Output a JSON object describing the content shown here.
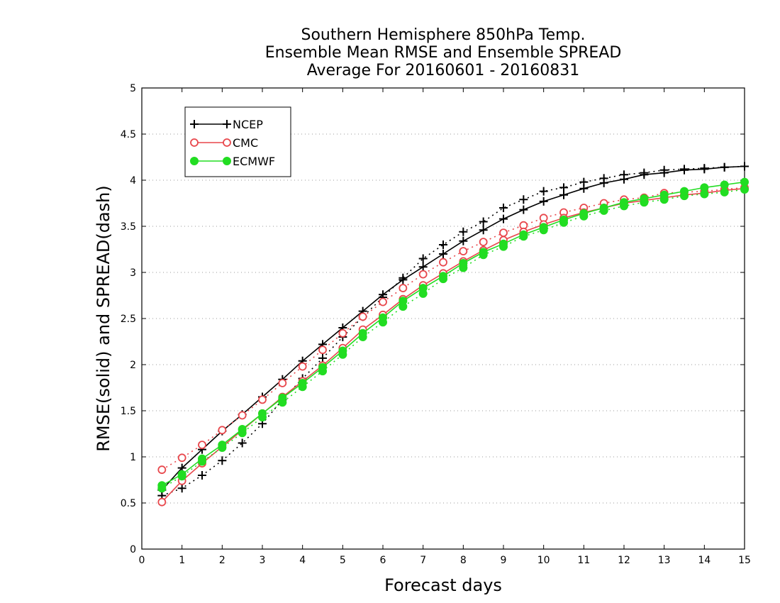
{
  "chart_data": {
    "type": "line",
    "title": [
      "Southern Hemisphere 850hPa Temp.",
      "Ensemble Mean RMSE and Ensemble SPREAD",
      "Average For 20160601 - 20160831"
    ],
    "xlabel": "Forecast days",
    "ylabel": "RMSE(solid) and SPREAD(dash)",
    "xlim": [
      0,
      15
    ],
    "ylim": [
      0,
      5
    ],
    "xticks": [
      "0",
      "1",
      "2",
      "3",
      "4",
      "5",
      "6",
      "7",
      "8",
      "9",
      "10",
      "11",
      "12",
      "13",
      "14",
      "15"
    ],
    "yticks": [
      "0",
      "0.5",
      "1",
      "1.5",
      "2",
      "2.5",
      "3",
      "3.5",
      "4",
      "4.5",
      "5"
    ],
    "grid": "horizontal dotted",
    "legend_position": "top-left",
    "x": [
      0.5,
      1,
      1.5,
      2,
      2.5,
      3,
      3.5,
      4,
      4.5,
      5,
      5.5,
      6,
      6.5,
      7,
      7.5,
      8,
      8.5,
      9,
      9.5,
      10,
      10.5,
      11,
      11.5,
      12,
      12.5,
      13,
      13.5,
      14,
      14.5,
      15
    ],
    "series": [
      {
        "name": "NCEP",
        "color": "#000000",
        "marker": "plus",
        "rmse": [
          0.64,
          0.88,
          1.08,
          1.28,
          1.46,
          1.65,
          1.84,
          2.04,
          2.22,
          2.4,
          2.58,
          2.76,
          2.92,
          3.06,
          3.2,
          3.34,
          3.46,
          3.58,
          3.68,
          3.77,
          3.84,
          3.91,
          3.97,
          4.01,
          4.06,
          4.08,
          4.11,
          4.12,
          4.14,
          4.15
        ],
        "spread": [
          0.58,
          0.66,
          0.8,
          0.96,
          1.15,
          1.36,
          1.62,
          1.85,
          2.07,
          2.3,
          2.52,
          2.73,
          2.94,
          3.15,
          3.3,
          3.44,
          3.55,
          3.7,
          3.79,
          3.88,
          3.92,
          3.98,
          4.02,
          4.06,
          4.08,
          4.11,
          4.12,
          4.13,
          4.14,
          4.15
        ]
      },
      {
        "name": "CMC",
        "color": "#e8474c",
        "marker": "open-circle",
        "rmse": [
          0.51,
          0.74,
          0.93,
          1.11,
          1.29,
          1.47,
          1.65,
          1.82,
          1.99,
          2.18,
          2.38,
          2.54,
          2.71,
          2.86,
          2.99,
          3.12,
          3.24,
          3.35,
          3.44,
          3.52,
          3.59,
          3.65,
          3.7,
          3.75,
          3.78,
          3.81,
          3.84,
          3.86,
          3.89,
          3.91
        ],
        "spread": [
          0.86,
          0.99,
          1.13,
          1.29,
          1.45,
          1.62,
          1.8,
          1.98,
          2.16,
          2.34,
          2.52,
          2.68,
          2.83,
          2.98,
          3.11,
          3.23,
          3.33,
          3.43,
          3.51,
          3.59,
          3.65,
          3.7,
          3.75,
          3.79,
          3.81,
          3.86,
          3.87,
          3.88,
          3.9,
          3.92
        ]
      },
      {
        "name": "ECMWF",
        "color": "#22dd22",
        "marker": "filled-circle",
        "rmse": [
          0.69,
          0.81,
          0.98,
          1.13,
          1.3,
          1.47,
          1.64,
          1.8,
          1.97,
          2.15,
          2.34,
          2.51,
          2.69,
          2.83,
          2.96,
          3.1,
          3.22,
          3.31,
          3.41,
          3.49,
          3.57,
          3.64,
          3.7,
          3.76,
          3.8,
          3.84,
          3.88,
          3.92,
          3.95,
          3.98
        ],
        "spread": [
          0.66,
          0.79,
          0.95,
          1.1,
          1.26,
          1.43,
          1.59,
          1.76,
          1.93,
          2.11,
          2.3,
          2.46,
          2.63,
          2.77,
          2.93,
          3.05,
          3.19,
          3.28,
          3.39,
          3.46,
          3.54,
          3.61,
          3.67,
          3.72,
          3.76,
          3.79,
          3.83,
          3.85,
          3.87,
          3.9
        ]
      }
    ]
  }
}
